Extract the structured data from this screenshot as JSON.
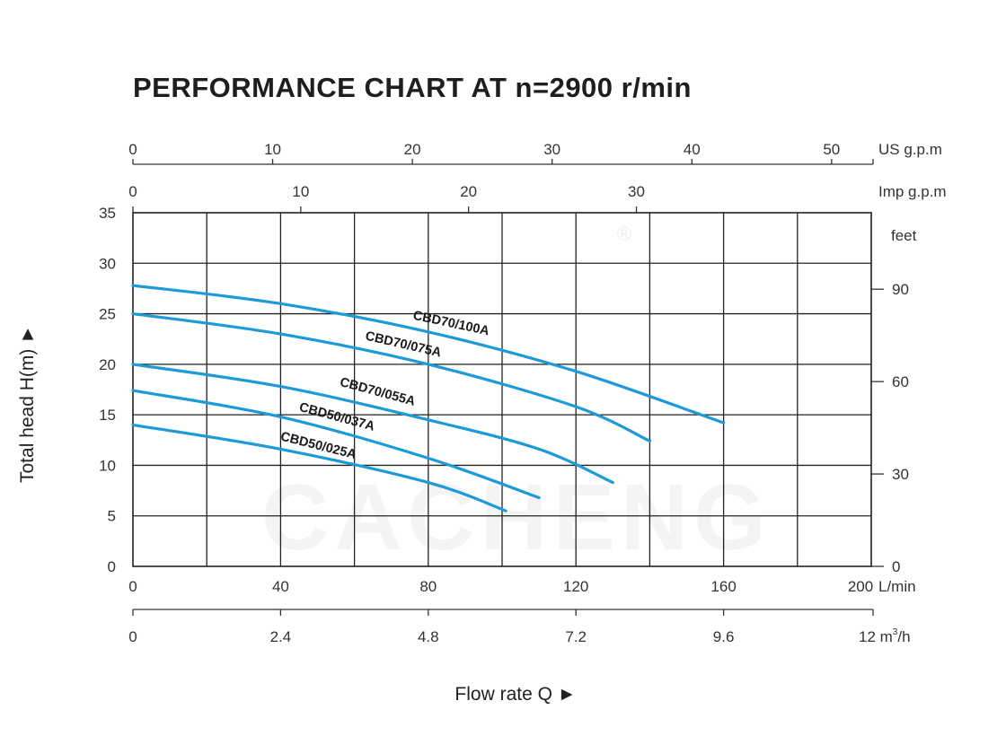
{
  "chart_data": {
    "type": "line",
    "title": "PERFORMANCE CHART AT n=2900 r/min",
    "xlabel": "Flow rate  Q ►",
    "ylabel": "Total  head H(m) ►",
    "xlim": [
      0,
      200
    ],
    "ylim": [
      0,
      35
    ],
    "grid": true,
    "x_unit": "L/min",
    "x_ticks": [
      0,
      40,
      80,
      120,
      160,
      200
    ],
    "y_ticks": [
      0,
      5,
      10,
      15,
      20,
      25,
      30,
      35
    ],
    "secondary_axes": {
      "usgpm": {
        "unit": "US g.p.m",
        "ticks": [
          0,
          10,
          20,
          30,
          40,
          50
        ]
      },
      "impgpm": {
        "unit": "Imp g.p.m",
        "ticks": [
          0,
          10,
          20,
          30
        ]
      },
      "feet": {
        "unit": "feet",
        "ticks": [
          0,
          30,
          60,
          90
        ]
      },
      "m3h": {
        "unit_main": "12 m",
        "unit_sup": "3",
        "unit_tail": "/h",
        "ticks": [
          "0",
          "2.4",
          "4.8",
          "7.2",
          "9.6"
        ]
      }
    },
    "series": [
      {
        "name": "CBD70/100A",
        "x": [
          0,
          40,
          80,
          120,
          160
        ],
        "y": [
          27.8,
          26.0,
          23.2,
          19.3,
          14.2
        ]
      },
      {
        "name": "CBD70/075A",
        "x": [
          0,
          40,
          80,
          120,
          140
        ],
        "y": [
          25.0,
          23.0,
          20.0,
          15.8,
          12.4
        ]
      },
      {
        "name": "CBD70/055A",
        "x": [
          0,
          40,
          80,
          110,
          130
        ],
        "y": [
          20.0,
          17.8,
          14.5,
          11.6,
          8.3
        ]
      },
      {
        "name": "CBD50/037A",
        "x": [
          0,
          40,
          80,
          110
        ],
        "y": [
          17.4,
          14.8,
          10.7,
          6.8
        ]
      },
      {
        "name": "CBD50/025A",
        "x": [
          0,
          40,
          80,
          101
        ],
        "y": [
          14.0,
          11.6,
          8.3,
          5.5
        ]
      }
    ],
    "colors": {
      "curve": "#1d9ad8",
      "grid": "#222222"
    }
  },
  "watermark": {
    "text": "CACHENG",
    "registered": "®"
  }
}
